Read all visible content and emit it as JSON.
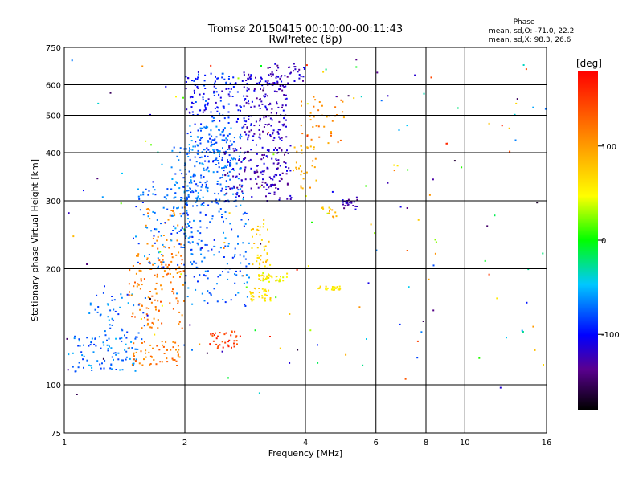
{
  "chart_data": {
    "type": "scatter",
    "title": "Tromsø 20150415 00:10:00-00:11:43",
    "subtitle": "RwPretec (8p)",
    "xlabel": "Frequency [MHz]",
    "ylabel": "Stationary phase Virtual Height [km]",
    "x_scale": "log",
    "y_scale": "log",
    "xlim": [
      1,
      16
    ],
    "ylim": [
      75,
      750
    ],
    "x_ticks": [
      1,
      2,
      4,
      6,
      8,
      10,
      16
    ],
    "x_tick_labels": [
      "1",
      "2",
      "4",
      "6",
      "8",
      "10",
      "16"
    ],
    "y_ticks": [
      75,
      100,
      200,
      300,
      400,
      500,
      600,
      750
    ],
    "y_tick_labels": [
      "75",
      "100",
      "200",
      "300",
      "400",
      "500",
      "600",
      "750"
    ],
    "grid": true,
    "stats": {
      "heading": "Phase",
      "line1": "mean, sd,O: -71.0, 22.2",
      "line2": "mean, sd,X:  98.3, 26.6"
    },
    "colorbar": {
      "label": "[deg]",
      "range": [
        -180,
        180
      ],
      "ticks": [
        -100,
        0,
        100
      ],
      "tick_labels": [
        "-100",
        "0",
        "100"
      ]
    },
    "clusters": [
      {
        "f_range": [
          1.05,
          1.55
        ],
        "h_range": [
          108,
          135
        ],
        "phase": -68,
        "n": 90
      },
      {
        "f_range": [
          1.15,
          1.6
        ],
        "h_range": [
          130,
          175
        ],
        "phase": -70,
        "n": 50
      },
      {
        "f_range": [
          1.45,
          1.95
        ],
        "h_range": [
          112,
          130
        ],
        "phase": 118,
        "n": 55
      },
      {
        "f_range": [
          1.45,
          2.0
        ],
        "h_range": [
          140,
          220
        ],
        "phase": 120,
        "n": 110
      },
      {
        "f_range": [
          1.6,
          2.0
        ],
        "h_range": [
          195,
          290
        ],
        "phase": 115,
        "n": 45
      },
      {
        "f_range": [
          1.5,
          2.1
        ],
        "h_range": [
          200,
          330
        ],
        "phase": -72,
        "n": 90
      },
      {
        "f_range": [
          1.85,
          2.2
        ],
        "h_range": [
          230,
          430
        ],
        "phase": -70,
        "n": 80
      },
      {
        "f_range": [
          2.0,
          2.8
        ],
        "h_range": [
          290,
          470
        ],
        "phase": -72,
        "n": 220
      },
      {
        "f_range": [
          2.0,
          2.9
        ],
        "h_range": [
          160,
          300
        ],
        "phase": -74,
        "n": 130
      },
      {
        "f_range": [
          2.0,
          3.0
        ],
        "h_range": [
          470,
          650
        ],
        "phase": -105,
        "n": 90
      },
      {
        "f_range": [
          2.1,
          2.6
        ],
        "h_range": [
          370,
          650
        ],
        "phase": -85,
        "n": 80
      },
      {
        "f_range": [
          2.3,
          2.75
        ],
        "h_range": [
          124,
          138
        ],
        "phase": 150,
        "n": 40
      },
      {
        "f_range": [
          2.5,
          3.7
        ],
        "h_range": [
          300,
          420
        ],
        "phase": -125,
        "n": 160
      },
      {
        "f_range": [
          2.9,
          3.3
        ],
        "h_range": [
          165,
          178
        ],
        "phase": 60,
        "n": 35
      },
      {
        "f_range": [
          3.0,
          3.6
        ],
        "h_range": [
          185,
          195
        ],
        "phase": 55,
        "n": 40
      },
      {
        "f_range": [
          2.9,
          3.3
        ],
        "h_range": [
          200,
          270
        ],
        "phase": 70,
        "n": 45
      },
      {
        "f_range": [
          2.8,
          3.6
        ],
        "h_range": [
          430,
          640
        ],
        "phase": -120,
        "n": 160
      },
      {
        "f_range": [
          3.2,
          4.0
        ],
        "h_range": [
          600,
          680
        ],
        "phase": -125,
        "n": 40
      },
      {
        "f_range": [
          3.7,
          4.3
        ],
        "h_range": [
          320,
          420
        ],
        "phase": 95,
        "n": 30
      },
      {
        "f_range": [
          3.9,
          5.0
        ],
        "h_range": [
          420,
          560
        ],
        "phase": 110,
        "n": 40
      },
      {
        "f_range": [
          4.3,
          4.9
        ],
        "h_range": [
          176,
          180
        ],
        "phase": 60,
        "n": 25
      },
      {
        "f_range": [
          4.9,
          5.4
        ],
        "h_range": [
          285,
          310
        ],
        "phase": -125,
        "n": 25
      },
      {
        "f_range": [
          4.4,
          4.8
        ],
        "h_range": [
          270,
          290
        ],
        "phase": 85,
        "n": 12
      },
      {
        "f_range": [
          1.0,
          16.0
        ],
        "h_range": [
          90,
          700
        ],
        "phase": 0,
        "n": 170,
        "scatter": true
      }
    ]
  }
}
